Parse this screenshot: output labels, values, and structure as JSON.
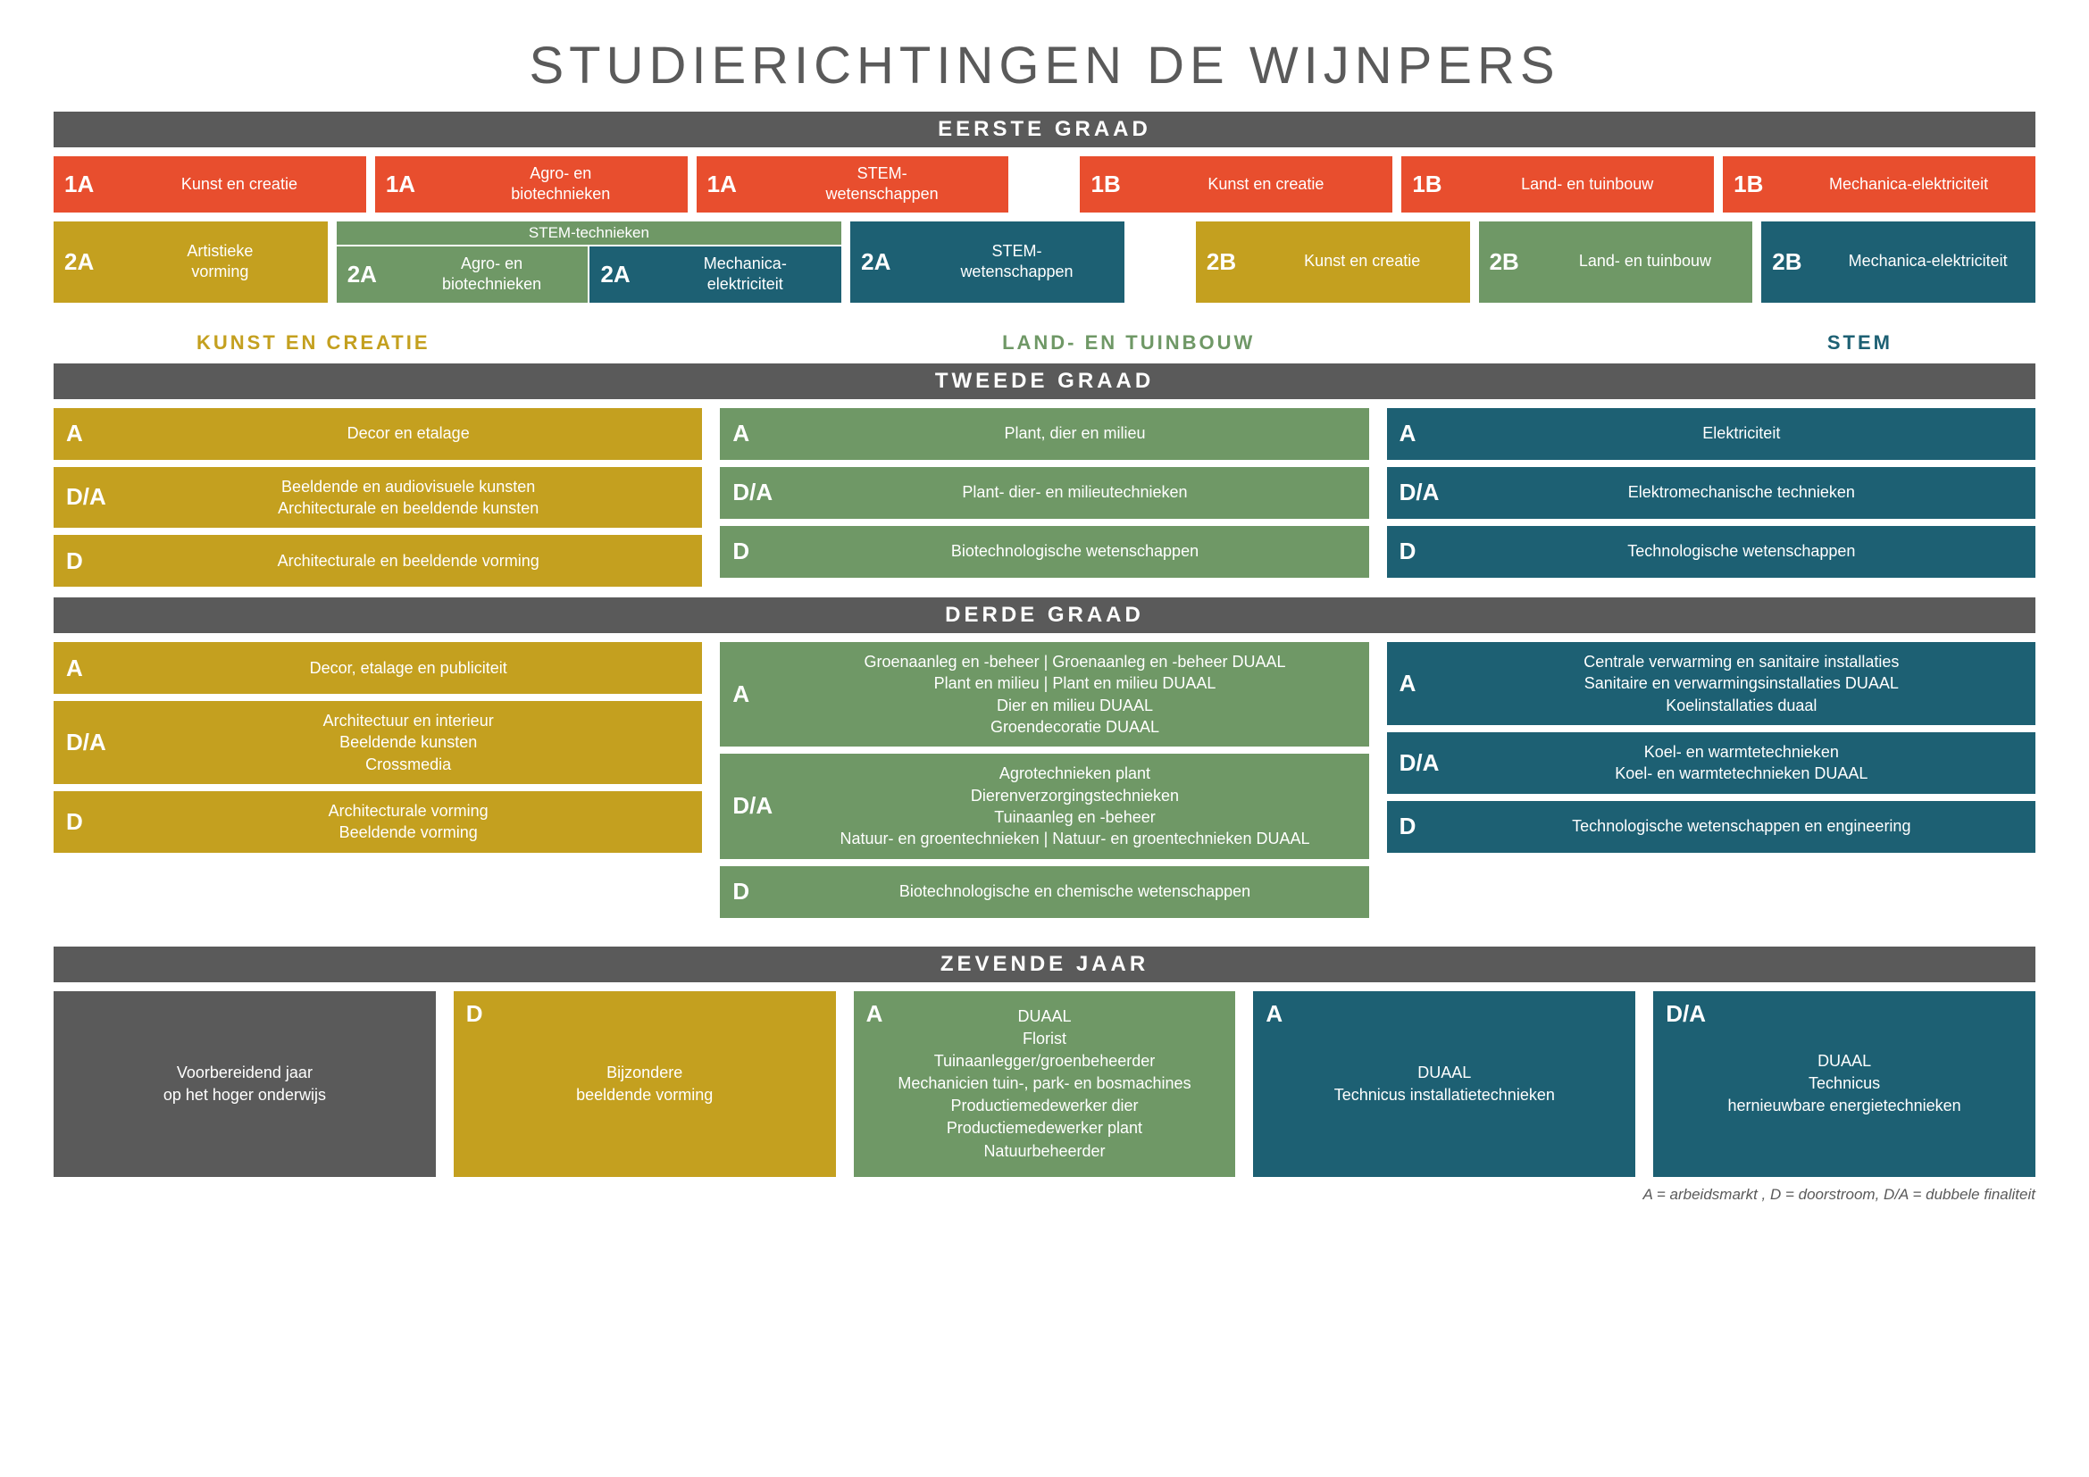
{
  "colors": {
    "orange": "#e84e2e",
    "mustard": "#c4a01f",
    "green": "#6f9866",
    "teal": "#1d6073",
    "grey": "#5a5a5a",
    "white": "#ffffff"
  },
  "title": "STUDIERICHTINGEN DE WIJNPERS",
  "headers": {
    "eerste": "EERSTE GRAAD",
    "tweede": "TWEEDE GRAAD",
    "derde": "DERDE GRAAD",
    "zevende": "ZEVENDE JAAR"
  },
  "domains": {
    "kunst": "KUNST EN CREATIE",
    "land": "LAND- EN TUINBOUW",
    "stem": "STEM"
  },
  "eerste": {
    "row1_left": [
      {
        "tag": "1A",
        "label": "Kunst en creatie",
        "color": "orange"
      },
      {
        "tag": "1A",
        "label": "Agro- en\nbiotechnieken",
        "color": "orange"
      },
      {
        "tag": "1A",
        "label": "STEM-\nwetenschappen",
        "color": "orange"
      }
    ],
    "row1_right": [
      {
        "tag": "1B",
        "label": "Kunst en creatie",
        "color": "orange"
      },
      {
        "tag": "1B",
        "label": "Land- en tuinbouw",
        "color": "orange"
      },
      {
        "tag": "1B",
        "label": "Mechanica-elektriciteit",
        "color": "orange"
      }
    ],
    "row2_left_first": {
      "tag": "2A",
      "label": "Artistieke\nvorming",
      "color": "mustard"
    },
    "stem_group_header": "STEM-technieken",
    "stem_group_items": [
      {
        "tag": "2A",
        "label": "Agro- en\nbiotechnieken",
        "color": "green"
      },
      {
        "tag": "2A",
        "label": "Mechanica-\nelektriciteit",
        "color": "teal"
      }
    ],
    "row2_left_last": {
      "tag": "2A",
      "label": "STEM-\nwetenschappen",
      "color": "teal"
    },
    "row2_right": [
      {
        "tag": "2B",
        "label": "Kunst en creatie",
        "color": "mustard"
      },
      {
        "tag": "2B",
        "label": "Land- en tuinbouw",
        "color": "green"
      },
      {
        "tag": "2B",
        "label": "Mechanica-elektriciteit",
        "color": "teal"
      }
    ]
  },
  "tweede": {
    "kunst": [
      {
        "tag": "A",
        "lines": [
          "Decor en etalage"
        ]
      },
      {
        "tag": "D/A",
        "lines": [
          "Beeldende en audiovisuele kunsten",
          "Architecturale en beeldende kunsten"
        ]
      },
      {
        "tag": "D",
        "lines": [
          "Architecturale en beeldende vorming"
        ]
      }
    ],
    "land": [
      {
        "tag": "A",
        "lines": [
          "Plant, dier en milieu"
        ]
      },
      {
        "tag": "D/A",
        "lines": [
          "Plant- dier- en milieutechnieken"
        ]
      },
      {
        "tag": "D",
        "lines": [
          "Biotechnologische wetenschappen"
        ]
      }
    ],
    "stem": [
      {
        "tag": "A",
        "lines": [
          "Elektriciteit"
        ]
      },
      {
        "tag": "D/A",
        "lines": [
          "Elektromechanische technieken"
        ]
      },
      {
        "tag": "D",
        "lines": [
          "Technologische wetenschappen"
        ]
      }
    ]
  },
  "derde": {
    "kunst": [
      {
        "tag": "A",
        "lines": [
          "Decor, etalage en publiciteit"
        ]
      },
      {
        "tag": "D/A",
        "lines": [
          "Architectuur en interieur",
          "Beeldende kunsten",
          "Crossmedia"
        ]
      },
      {
        "tag": "D",
        "lines": [
          "Architecturale vorming",
          "Beeldende vorming"
        ]
      }
    ],
    "land": [
      {
        "tag": "A",
        "lines": [
          "Groenaanleg en -beheer | Groenaanleg en -beheer DUAAL",
          "Plant en milieu | Plant en milieu DUAAL",
          "Dier en milieu DUAAL",
          "Groendecoratie DUAAL"
        ]
      },
      {
        "tag": "D/A",
        "lines": [
          "Agrotechnieken plant",
          "Dierenverzorgingstechnieken",
          "Tuinaanleg en -beheer",
          "Natuur- en groentechnieken | Natuur- en groentechnieken DUAAL"
        ]
      },
      {
        "tag": "D",
        "lines": [
          "Biotechnologische en chemische wetenschappen"
        ]
      }
    ],
    "stem": [
      {
        "tag": "A",
        "lines": [
          "Centrale verwarming en sanitaire installaties",
          "Sanitaire en verwarmingsinstallaties DUAAL",
          "Koelinstallaties duaal"
        ]
      },
      {
        "tag": "D/A",
        "lines": [
          "Koel- en warmtetechnieken",
          "Koel- en warmtetechnieken DUAAL"
        ]
      },
      {
        "tag": "D",
        "lines": [
          "Technologische wetenschappen en engineering"
        ]
      }
    ]
  },
  "zevende": [
    {
      "tag": "",
      "color": "grey",
      "lines": [
        "Voorbereidend jaar",
        "op het hoger onderwijs"
      ]
    },
    {
      "tag": "D",
      "color": "mustard",
      "lines": [
        "Bijzondere",
        "beeldende vorming"
      ]
    },
    {
      "tag": "A",
      "color": "green",
      "lines": [
        "DUAAL",
        "Florist",
        "Tuinaanlegger/groenbeheerder",
        "Mechanicien tuin-, park- en bosmachines",
        "Productiemedewerker dier",
        "Productiemedewerker plant",
        "Natuurbeheerder"
      ]
    },
    {
      "tag": "A",
      "color": "teal",
      "lines": [
        "DUAAL",
        "Technicus installatietechnieken"
      ]
    },
    {
      "tag": "D/A",
      "color": "teal",
      "lines": [
        "DUAAL",
        "Technicus",
        "hernieuwbare energietechnieken"
      ]
    }
  ],
  "legend": "A = arbeidsmarkt , D = doorstroom, D/A = dubbele finaliteit"
}
